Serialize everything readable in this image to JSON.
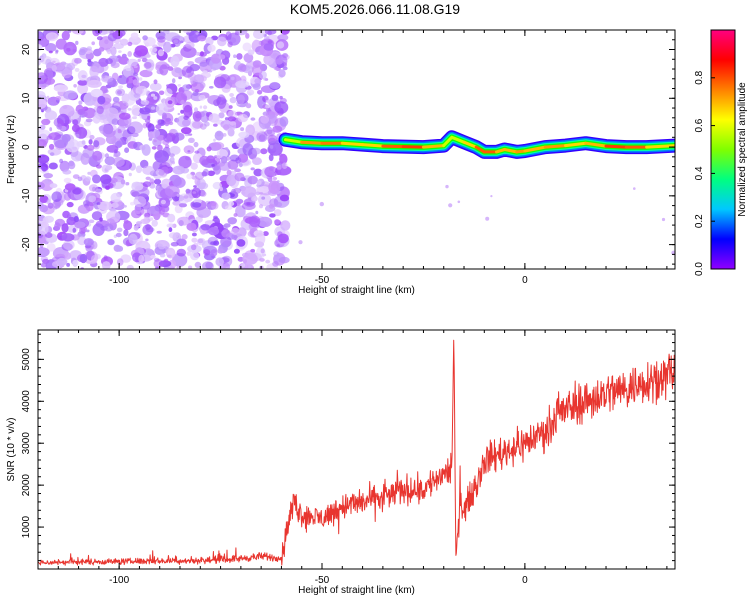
{
  "page": {
    "title": "KOM5.2026.066.11.08.G19"
  },
  "chart_data": [
    {
      "type": "heatmap",
      "title": "",
      "xlabel": "Height of straight line (km)",
      "ylabel": "Frequency (Hz)",
      "xlim": [
        -120,
        37
      ],
      "ylim": [
        -25,
        24
      ],
      "xticks": [
        -100,
        -50,
        0
      ],
      "yticks": [
        -20,
        -10,
        0,
        10,
        20
      ],
      "grid": false,
      "colorbar": {
        "label": "Normalized spectral amplitude",
        "range": [
          0,
          1
        ],
        "ticks": [
          0.0,
          0.2,
          0.4,
          0.6,
          0.8
        ],
        "tick_labels": [
          "0.0",
          "0.2",
          "0.4",
          "0.6",
          "0.8"
        ],
        "colors": [
          "#9000ff",
          "#0000ff",
          "#00c8ff",
          "#00ff80",
          "#80ff00",
          "#ffff00",
          "#ff8000",
          "#ff0000",
          "#ff0080"
        ]
      },
      "noise_region": {
        "x_range": [
          -120,
          -59
        ],
        "amplitude": 0.1
      },
      "signal_trace": {
        "x": [
          -59,
          -55,
          -50,
          -45,
          -40,
          -35,
          -30,
          -25,
          -20,
          -18,
          -15,
          -12,
          -10,
          -7,
          -5,
          -2,
          0,
          5,
          10,
          15,
          20,
          25,
          30,
          37
        ],
        "frequency": [
          1.5,
          1.0,
          0.8,
          0.8,
          0.5,
          0.2,
          0.1,
          0.0,
          0.3,
          2.0,
          1.0,
          0.0,
          -1.0,
          -1.0,
          -0.5,
          -1.0,
          -0.8,
          0.0,
          0.3,
          0.8,
          0.2,
          0.0,
          0.0,
          0.3
        ],
        "amplitude": [
          0.5,
          0.8,
          0.85,
          0.85,
          0.7,
          0.85,
          0.9,
          0.9,
          0.7,
          0.6,
          0.7,
          0.85,
          0.9,
          0.85,
          0.75,
          0.85,
          0.8,
          0.8,
          0.85,
          0.7,
          0.9,
          0.9,
          0.85,
          0.7
        ]
      }
    },
    {
      "type": "line",
      "title": "",
      "xlabel": "Height of straight line (km)",
      "ylabel": "SNR (10 * v/v)",
      "xlim": [
        -120,
        37
      ],
      "ylim": [
        0,
        5700
      ],
      "xticks": [
        -100,
        -50,
        0
      ],
      "yticks": [
        1000,
        2000,
        3000,
        4000,
        5000
      ],
      "grid": false,
      "series": [
        {
          "color": "#e8352f",
          "x": [
            -120,
            -110,
            -100,
            -90,
            -80,
            -70,
            -65,
            -60,
            -59,
            -57,
            -55,
            -50,
            -45,
            -40,
            -35,
            -30,
            -25,
            -20,
            -18,
            -17.5,
            -17,
            -16,
            -15,
            -12,
            -10,
            -5,
            0,
            5,
            10,
            15,
            20,
            25,
            30,
            37
          ],
          "y": [
            150,
            170,
            180,
            190,
            200,
            250,
            300,
            250,
            800,
            1600,
            1300,
            1200,
            1500,
            1600,
            1700,
            1900,
            1900,
            2300,
            2400,
            5600,
            200,
            1800,
            1400,
            2000,
            2600,
            2800,
            3000,
            3300,
            3800,
            4000,
            4200,
            4300,
            4500,
            4700
          ]
        }
      ]
    }
  ]
}
